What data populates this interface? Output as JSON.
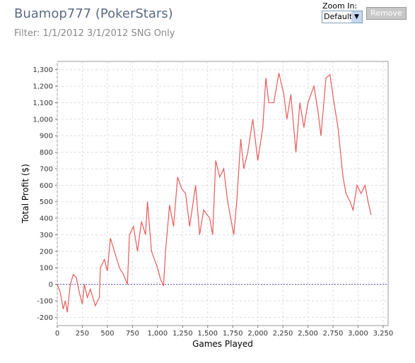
{
  "ui": {
    "zoom_label": "Zoom In:",
    "zoom_option": "Default",
    "button": "Remove"
  },
  "chart_data": {
    "type": "line",
    "title": "Buamop777 (PokerStars)",
    "subtitle": "Filter: 1/1/2012 3/1/2012 SNG Only",
    "xlabel": "Games Played",
    "ylabel": "Total Profit ($)",
    "color": "#e85a5a",
    "grid": true,
    "xlim": [
      0,
      3300
    ],
    "ylim": [
      -250,
      1350
    ],
    "xticks": [
      0,
      250,
      500,
      750,
      {
        "value": 1000,
        "label": "1,000"
      },
      {
        "value": 1250,
        "label": "1,250"
      },
      {
        "value": 1500,
        "label": "1,500"
      },
      {
        "value": 1750,
        "label": "1,750"
      },
      {
        "value": 2000,
        "label": "2,000"
      },
      {
        "value": 2250,
        "label": "2,250"
      },
      {
        "value": 2500,
        "label": "2,500"
      },
      {
        "value": 2750,
        "label": "2,750"
      },
      {
        "value": 3000,
        "label": "3,000"
      },
      {
        "value": 3250,
        "label": "3,250"
      }
    ],
    "yticks": [
      -200,
      -100,
      0,
      100,
      200,
      300,
      400,
      500,
      600,
      700,
      800,
      900,
      {
        "value": 1000,
        "label": "1,000"
      },
      {
        "value": 1100,
        "label": "1,100"
      },
      {
        "value": 1200,
        "label": "1,200"
      },
      {
        "value": 1300,
        "label": "1,300"
      }
    ],
    "x": [
      0,
      30,
      60,
      80,
      100,
      130,
      160,
      190,
      220,
      250,
      270,
      300,
      330,
      380,
      420,
      430,
      470,
      500,
      530,
      570,
      620,
      660,
      700,
      720,
      760,
      800,
      840,
      880,
      900,
      940,
      1000,
      1030,
      1060,
      1080,
      1120,
      1160,
      1200,
      1240,
      1280,
      1320,
      1380,
      1420,
      1460,
      1520,
      1550,
      1580,
      1620,
      1660,
      1700,
      1760,
      1790,
      1830,
      1860,
      1900,
      1950,
      2000,
      2050,
      2080,
      2110,
      2160,
      2210,
      2260,
      2290,
      2330,
      2380,
      2420,
      2460,
      2500,
      2560,
      2600,
      2630,
      2680,
      2720,
      2760,
      2800,
      2850,
      2880,
      2920,
      2950,
      2990,
      3030,
      3070,
      3100,
      3130
    ],
    "values": [
      0,
      -50,
      -150,
      -100,
      -170,
      0,
      60,
      40,
      -50,
      -120,
      0,
      -80,
      -30,
      -130,
      -80,
      100,
      150,
      80,
      280,
      200,
      100,
      60,
      0,
      300,
      350,
      200,
      380,
      300,
      500,
      200,
      100,
      30,
      -10,
      200,
      480,
      350,
      650,
      580,
      550,
      350,
      600,
      300,
      450,
      400,
      300,
      750,
      650,
      700,
      500,
      300,
      500,
      880,
      700,
      800,
      1000,
      750,
      950,
      1250,
      1100,
      1100,
      1280,
      1150,
      1000,
      1150,
      800,
      1100,
      950,
      1100,
      1200,
      1050,
      900,
      1250,
      1270,
      1100,
      950,
      650,
      550,
      500,
      450,
      600,
      550,
      600,
      500,
      420
    ]
  }
}
